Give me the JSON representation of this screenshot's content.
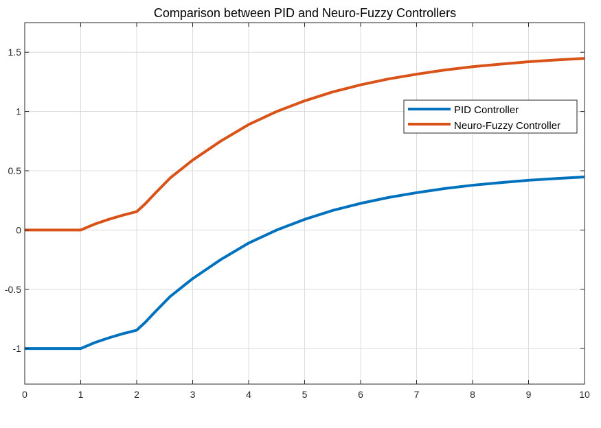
{
  "chart_data": {
    "type": "line",
    "title": "Comparison between PID and Neuro-Fuzzy Controllers",
    "xlabel": "",
    "ylabel": "",
    "xlim": [
      0,
      10
    ],
    "ylim": [
      -1.3,
      1.75
    ],
    "grid": true,
    "legend_position": "top-right",
    "x_ticks": [
      0,
      1,
      2,
      3,
      4,
      5,
      6,
      7,
      8,
      9,
      10
    ],
    "x_tick_labels": [
      "0",
      "1",
      "2",
      "3",
      "4",
      "5",
      "6",
      "7",
      "8",
      "9",
      "10"
    ],
    "y_ticks": [
      -1,
      -0.5,
      0,
      0.5,
      1,
      1.5
    ],
    "y_tick_labels": [
      "-1",
      "-0.5",
      "0",
      "0.5",
      "1",
      "1.5"
    ],
    "x": [
      0,
      0.5,
      1,
      1.25,
      1.5,
      1.75,
      2,
      2.15,
      2.35,
      2.6,
      3,
      3.5,
      4,
      4.5,
      5,
      5.5,
      6,
      6.5,
      7,
      7.5,
      8,
      8.5,
      9,
      9.5,
      10
    ],
    "series": [
      {
        "name": "PID Controller",
        "color": "#0072BD",
        "values": [
          -1,
          -1,
          -1,
          -0.95,
          -0.91,
          -0.875,
          -0.845,
          -0.78,
          -0.68,
          -0.56,
          -0.41,
          -0.25,
          -0.11,
          0.0,
          0.09,
          0.165,
          0.225,
          0.275,
          0.315,
          0.35,
          0.378,
          0.4,
          0.42,
          0.435,
          0.448
        ]
      },
      {
        "name": "Neuro-Fuzzy Controller",
        "color": "#D95319",
        "values": [
          0,
          0,
          0,
          0.05,
          0.09,
          0.125,
          0.155,
          0.22,
          0.32,
          0.44,
          0.59,
          0.75,
          0.89,
          1.0,
          1.09,
          1.165,
          1.225,
          1.275,
          1.315,
          1.35,
          1.378,
          1.4,
          1.42,
          1.435,
          1.448
        ]
      }
    ]
  }
}
